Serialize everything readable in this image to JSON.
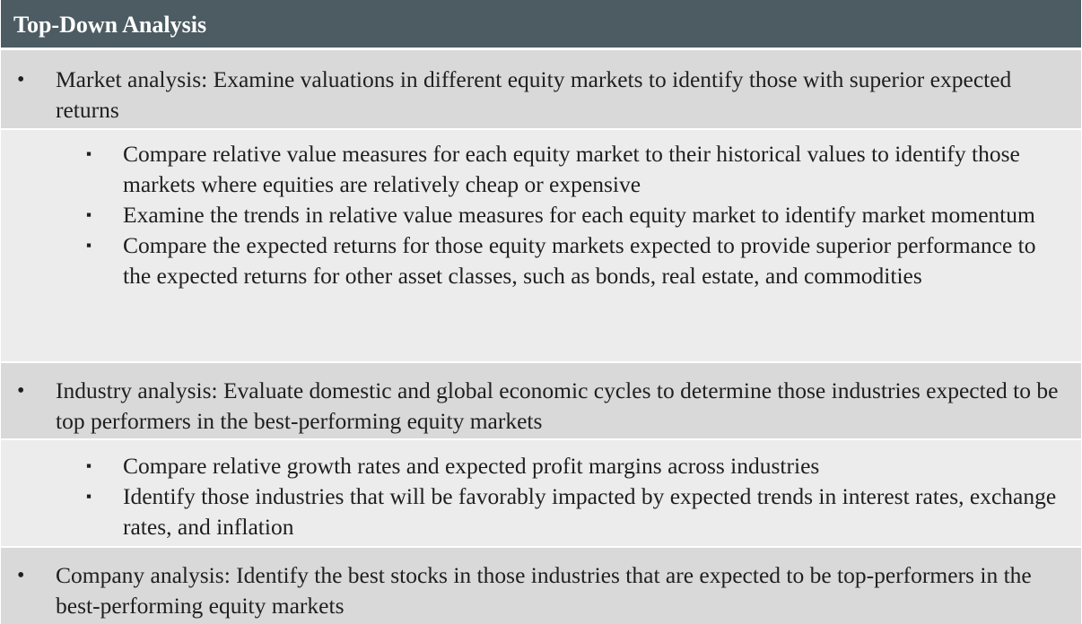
{
  "title": "Top-Down Analysis",
  "sections": [
    {
      "main": "Market analysis: Examine valuations in different equity markets to identify those with superior expected returns",
      "subs": [
        "Compare relative value measures for each equity market to their historical values to identify those markets where equities are relatively cheap or expensive",
        "Examine the trends in relative value measures for each equity market to identify market momentum",
        "Compare the expected returns for those equity markets expected to provide superior performance to the expected returns for other asset classes, such as bonds, real estate, and commodities"
      ]
    },
    {
      "main": "Industry analysis: Evaluate domestic and global economic cycles to determine those industries expected to be top performers in the best-performing equity markets",
      "subs": [
        "Compare relative growth rates and expected profit margins across industries",
        "Identify those industries that will be favorably impacted by expected trends in interest rates, exchange rates, and inflation"
      ]
    },
    {
      "main": "Company analysis: Identify the best stocks in those industries that are expected to be top-performers in the best-performing equity markets",
      "subs": []
    }
  ],
  "bullets": {
    "main": "•",
    "sub": "▪"
  },
  "colors": {
    "header": "#4d5c63",
    "row_dark": "#d9d9d9",
    "row_light": "#ececec"
  }
}
